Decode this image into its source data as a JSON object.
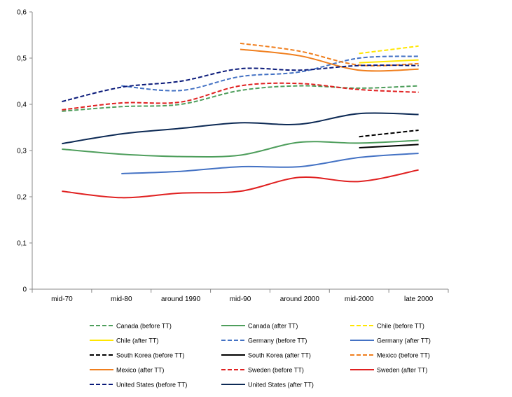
{
  "chart_data": {
    "type": "line",
    "categories": [
      "mid-70",
      "mid-80",
      "around 1990",
      "mid-90",
      "around 2000",
      "mid-2000",
      "late 2000"
    ],
    "y_ticks": [
      "0",
      "0,1",
      "0,2",
      "0,3",
      "0,4",
      "0,5",
      "0,6"
    ],
    "ylim": [
      0,
      0.6
    ],
    "grid": false,
    "legend_position": "bottom",
    "series": [
      {
        "name": "Canada (before TT)",
        "color": "#4e9e5c",
        "dash": true,
        "values": [
          0.385,
          0.395,
          0.4,
          0.43,
          0.44,
          0.435,
          0.44
        ]
      },
      {
        "name": "Canada (after TT)",
        "color": "#4e9e5c",
        "dash": false,
        "values": [
          0.303,
          0.292,
          0.287,
          0.29,
          0.318,
          0.316,
          0.322
        ]
      },
      {
        "name": "Chile (before TT)",
        "color": "#ffe600",
        "dash": true,
        "values": [
          null,
          null,
          null,
          null,
          null,
          0.51,
          0.526
        ]
      },
      {
        "name": "Chile (after TT)",
        "color": "#ffe600",
        "dash": false,
        "values": [
          null,
          null,
          null,
          null,
          null,
          0.49,
          0.496
        ]
      },
      {
        "name": "Germany (before TT)",
        "color": "#4472c4",
        "dash": true,
        "values": [
          null,
          0.44,
          0.43,
          0.46,
          0.47,
          0.5,
          0.504
        ]
      },
      {
        "name": "Germany (after TT)",
        "color": "#4472c4",
        "dash": false,
        "values": [
          null,
          0.25,
          0.255,
          0.265,
          0.265,
          0.285,
          0.294
        ]
      },
      {
        "name": "South Korea (before TT)",
        "color": "#000000",
        "dash": true,
        "values": [
          null,
          null,
          null,
          null,
          null,
          0.33,
          0.344
        ]
      },
      {
        "name": "South Korea (after TT)",
        "color": "#000000",
        "dash": false,
        "values": [
          null,
          null,
          null,
          null,
          null,
          0.306,
          0.313
        ]
      },
      {
        "name": "Mexico (before TT)",
        "color": "#f07f1e",
        "dash": true,
        "values": [
          null,
          null,
          null,
          0.532,
          0.515,
          0.485,
          0.488
        ]
      },
      {
        "name": "Mexico (after TT)",
        "color": "#f07f1e",
        "dash": false,
        "values": [
          null,
          null,
          null,
          0.519,
          0.505,
          0.474,
          0.476
        ]
      },
      {
        "name": "Sweden (before TT)",
        "color": "#e02020",
        "dash": true,
        "values": [
          0.388,
          0.403,
          0.405,
          0.44,
          0.445,
          0.432,
          0.426
        ]
      },
      {
        "name": "Sweden (after TT)",
        "color": "#e02020",
        "dash": false,
        "values": [
          0.212,
          0.198,
          0.208,
          0.212,
          0.242,
          0.233,
          0.258
        ]
      },
      {
        "name": "United States (before TT)",
        "color": "#0a1a7a",
        "dash": true,
        "values": [
          0.406,
          0.437,
          0.45,
          0.477,
          0.474,
          0.484,
          0.484
        ]
      },
      {
        "name": "United States (after TT)",
        "color": "#0d2a55",
        "dash": false,
        "values": [
          0.315,
          0.336,
          0.348,
          0.36,
          0.357,
          0.38,
          0.378
        ]
      }
    ]
  }
}
